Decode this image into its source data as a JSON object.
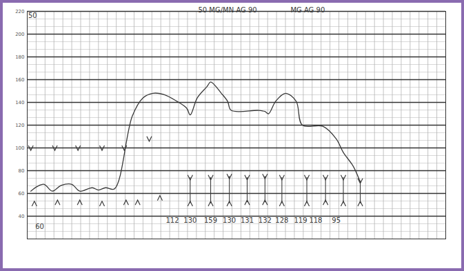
{
  "chart_data": {
    "type": "line",
    "xlim": [
      0,
      47
    ],
    "ylim": [
      20,
      220
    ],
    "yticks": [
      40,
      60,
      80,
      100,
      120,
      140,
      160,
      180,
      200,
      220
    ],
    "grid": true,
    "tick_labels": "y",
    "color": "#3a3a3a",
    "series": [
      {
        "type": "line",
        "color": "#3a3a3a",
        "x": [
          0.4,
          1.1,
          1.9,
          2.8,
          3.8,
          5.0,
          5.9,
          7.3,
          8.0,
          8.8,
          9.8,
          11.8,
          13.0,
          14.1,
          15.3,
          16.8,
          17.9,
          18.3,
          19.1,
          20.2,
          20.6,
          21.8,
          22.5,
          22.9,
          26.0,
          26.7,
          27.1,
          27.9,
          29.0,
          30.2,
          30.9,
          33.2,
          34.7,
          35.5,
          36.6,
          37.4
        ],
        "values": [
          62,
          66,
          68,
          62,
          67,
          68,
          62,
          65,
          63,
          65,
          64,
          128,
          144,
          148,
          147,
          141,
          135,
          129,
          144,
          154,
          158,
          148,
          141,
          133,
          133,
          132,
          130,
          141,
          148,
          141,
          120,
          119,
          108,
          96,
          84,
          70
        ]
      },
      {
        "type": "scatter",
        "marker": "v",
        "color": "#3a3a3a",
        "x": [
          0.4,
          3.1,
          5.7,
          8.4,
          10.9,
          13.7
        ],
        "values": [
          100,
          100,
          100,
          100,
          100,
          108
        ]
      },
      {
        "type": "scatter",
        "marker": "^",
        "color": "#3a3a3a",
        "x": [
          0.8,
          3.4,
          5.9,
          8.4,
          11.1,
          12.4,
          14.9
        ],
        "values": [
          51,
          52,
          52,
          51,
          52,
          52,
          56
        ]
      }
    ],
    "ranges": {
      "x": [
        18.3,
        20.6,
        22.7,
        24.7,
        26.7,
        28.6,
        31.4,
        33.5,
        35.5,
        37.4
      ],
      "high": [
        74,
        74,
        75,
        74,
        75,
        74,
        74,
        74,
        74,
        71
      ],
      "low": [
        51,
        51,
        51,
        52,
        52,
        51,
        51,
        52,
        51,
        51
      ]
    },
    "annotations": [
      {
        "text": "50 MG/MN AG 90",
        "x": 22.5,
        "y": 221
      },
      {
        "text": "MG AG 90",
        "x": 31.5,
        "y": 221
      },
      {
        "text": "50",
        "x": 0.6,
        "y": 216
      },
      {
        "text": "60",
        "x": 1.4,
        "y": 31
      },
      {
        "text": "112",
        "x": 16.3,
        "y": 36
      },
      {
        "text": "130",
        "x": 18.3,
        "y": 36
      },
      {
        "text": "159",
        "x": 20.6,
        "y": 36
      },
      {
        "text": "130",
        "x": 22.7,
        "y": 36
      },
      {
        "text": "131",
        "x": 24.7,
        "y": 36
      },
      {
        "text": "132",
        "x": 26.7,
        "y": 36
      },
      {
        "text": "128",
        "x": 28.6,
        "y": 36
      },
      {
        "text": "119",
        "x": 30.7,
        "y": 36
      },
      {
        "text": "118",
        "x": 32.4,
        "y": 36
      },
      {
        "text": "95",
        "x": 34.7,
        "y": 36
      }
    ]
  }
}
